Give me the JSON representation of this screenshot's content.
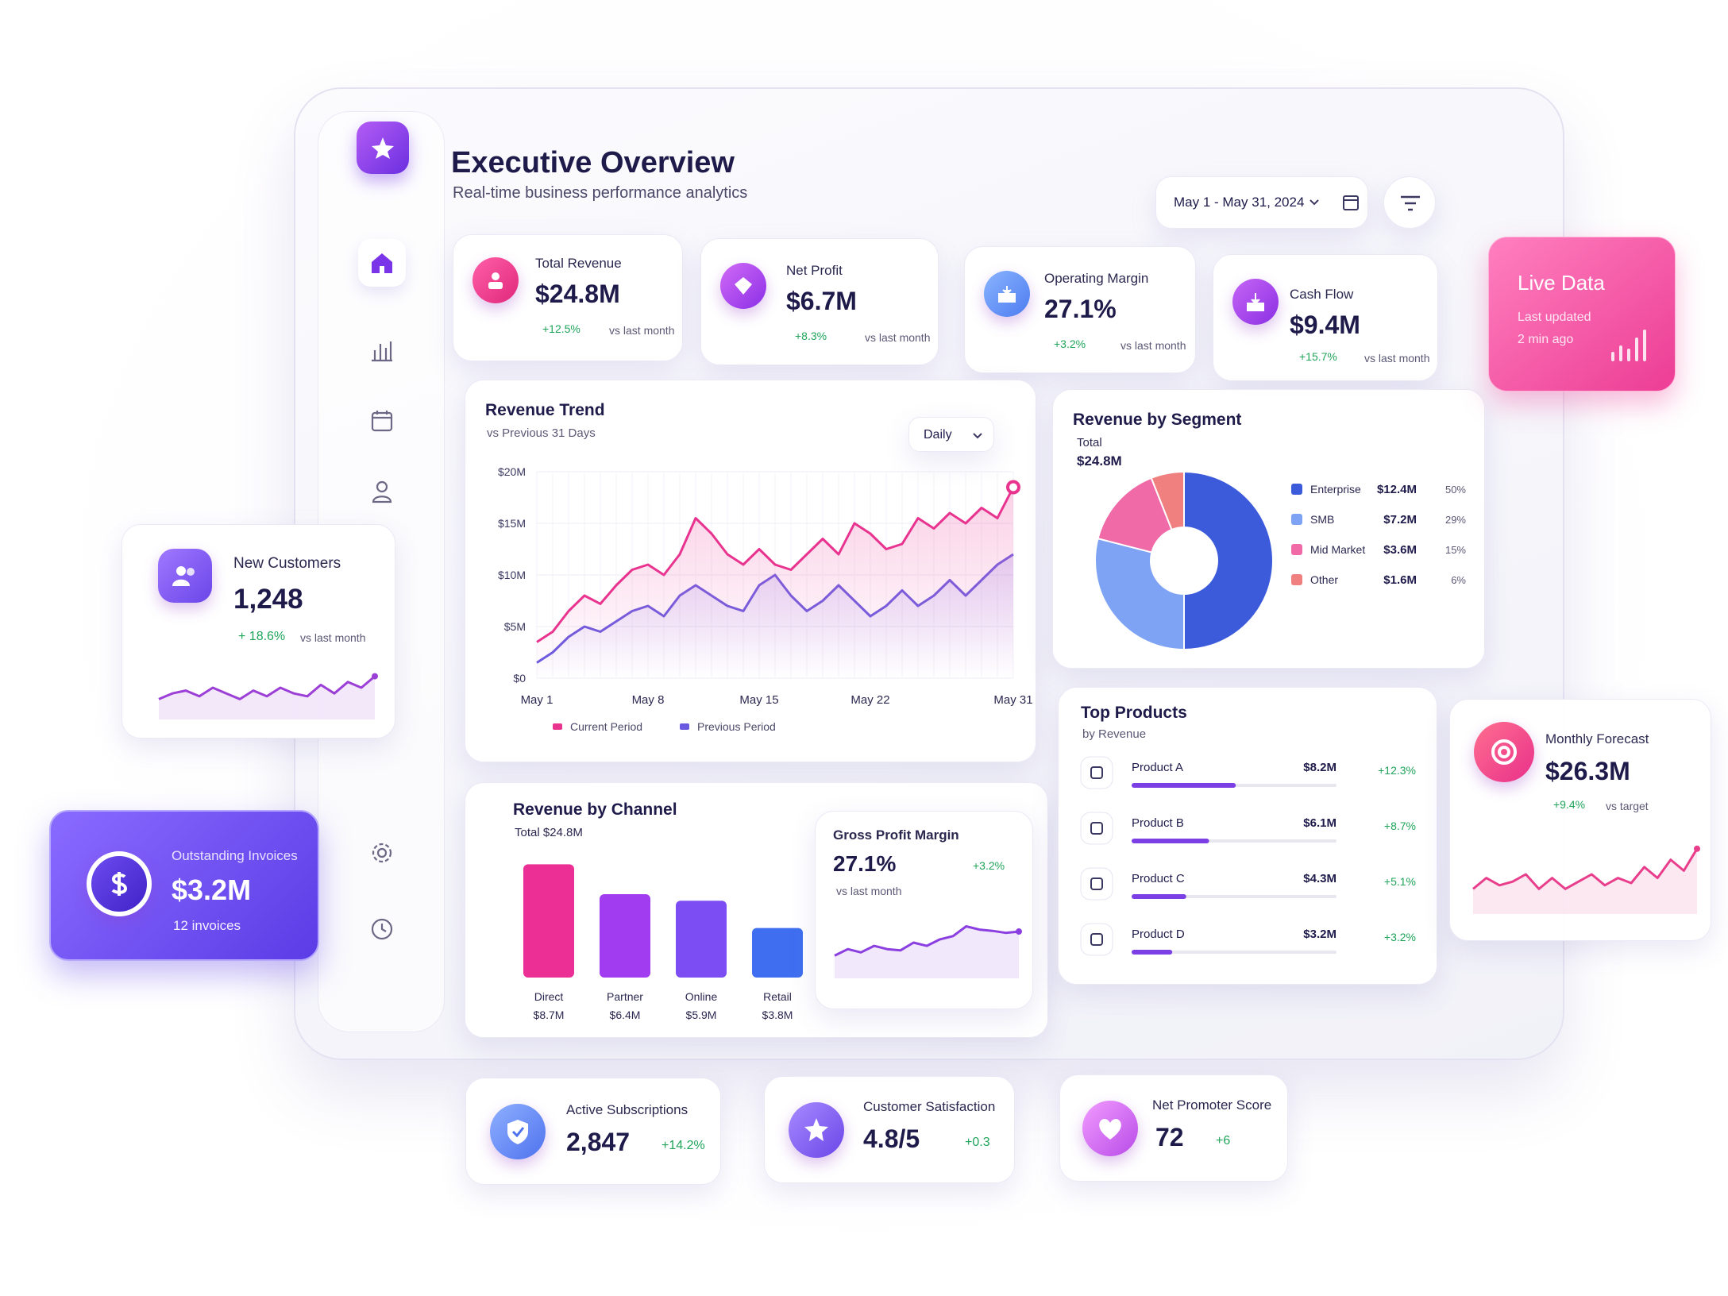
{
  "header": {
    "title": "Executive Overview",
    "subtitle": "Real-time business performance analytics",
    "date_range": "May 1 - May 31, 2024"
  },
  "kpis": [
    {
      "label": "Total Revenue",
      "value": "$24.8M",
      "change": "+12.5%",
      "note": "vs last month"
    },
    {
      "label": "Net Profit",
      "value": "$6.7M",
      "change": "+8.3%",
      "note": "vs last month"
    },
    {
      "label": "Operating Margin",
      "value": "27.1%",
      "change": "+3.2%",
      "note": "vs last month"
    },
    {
      "label": "Cash Flow",
      "value": "$9.4M",
      "change": "+15.7%",
      "note": "vs last month"
    }
  ],
  "revenue_trend": {
    "type": "line",
    "title": "Revenue Trend",
    "subtitle": "vs Previous 31 Days",
    "period": "Daily",
    "categories": [
      "May 1",
      null,
      null,
      null,
      null,
      null,
      null,
      "May 8",
      null,
      null,
      null,
      null,
      null,
      null,
      "May 15",
      null,
      null,
      null,
      null,
      null,
      null,
      "May 22",
      null,
      null,
      null,
      null,
      null,
      null,
      null,
      null,
      "May 31"
    ],
    "series": [
      {
        "name": "Current Period",
        "color": "#e8338f",
        "values": [
          3.5,
          4.5,
          6.5,
          8,
          7.2,
          9,
          10.5,
          11,
          10,
          12,
          15.5,
          14,
          12,
          11,
          12.5,
          11,
          10.5,
          12,
          13.5,
          12,
          15,
          14,
          12.5,
          13,
          15.5,
          14.5,
          16,
          15,
          16.5,
          15.5,
          18.5
        ]
      },
      {
        "name": "Previous Period",
        "color": "#6a5ae0",
        "values": [
          1.5,
          2.5,
          4,
          5,
          4.5,
          5.5,
          6.5,
          7,
          6,
          8,
          9,
          8,
          7,
          6.5,
          9,
          10,
          8,
          6.5,
          7.5,
          9,
          7.5,
          6,
          7,
          8.5,
          7,
          8,
          9.5,
          8,
          9.5,
          11,
          12
        ]
      }
    ],
    "ylim": [
      0,
      20
    ],
    "yticks": [
      {
        "value": 0,
        "label": "$0"
      },
      {
        "value": 5,
        "label": "$5M"
      },
      {
        "value": 10,
        "label": "$10M"
      },
      {
        "value": 15,
        "label": "$15M"
      },
      {
        "value": 20,
        "label": "$20M"
      }
    ],
    "grid": true
  },
  "revenue_by_segment": {
    "type": "donut",
    "title": "Revenue by Segment",
    "total_label": "Total",
    "total": "$24.8M",
    "categories": [
      "Enterprise",
      "SMB",
      "Mid Market",
      "Other"
    ],
    "values": [
      50,
      29,
      15,
      6
    ],
    "value_labels": [
      "50%",
      "29%",
      "15%",
      "6%"
    ],
    "amounts": [
      "$12.4M",
      "$7.2M",
      "$3.6M",
      "$1.6M"
    ],
    "colors": [
      "#3b5bdb",
      "#7ea3f5",
      "#f06aa8",
      "#f08080"
    ]
  },
  "revenue_by_channel": {
    "type": "bar",
    "title": "Revenue by Channel",
    "subtitle": "Total $24.8M",
    "categories": [
      "Direct",
      "Partner",
      "Online",
      "Retail"
    ],
    "values": [
      8.7,
      6.4,
      5.9,
      3.8
    ],
    "value_labels": [
      "$8.7M",
      "$6.4M",
      "$5.9M",
      "$3.8M"
    ],
    "colors": [
      "#ec2f94",
      "#a23cf0",
      "#7b4df2",
      "#3f6ff0"
    ]
  },
  "gross_profit_margin": {
    "type": "sparkline",
    "label": "Gross Profit Margin",
    "value": "27.1%",
    "change": "+3.2%",
    "note": "vs last month",
    "color": "#8b3fe0",
    "values": [
      3,
      4,
      3.5,
      4.5,
      4,
      3.8,
      5,
      4.5,
      5.5,
      6,
      7.5,
      7,
      6.8,
      6.5,
      6.7
    ]
  },
  "top_products": {
    "type": "progress",
    "title": "Top Products",
    "subtitle": "by Revenue",
    "categories": [
      "Product A",
      "Product B",
      "Product C",
      "Product D"
    ],
    "values": [
      8.2,
      6.1,
      4.3,
      3.2
    ],
    "value_labels": [
      "$8.2M",
      "$6.1M",
      "$4.3M",
      "$3.2M"
    ],
    "changes": [
      "+12.3%",
      "+8.7%",
      "+5.1%",
      "+3.2%"
    ],
    "color": "#7b3fe4"
  },
  "live_data": {
    "title": "Live Data",
    "line1": "Last updated",
    "line2": "2 min ago"
  },
  "new_customers": {
    "type": "sparkline",
    "label": "New Customers",
    "value": "1,248",
    "change": "+ 18.6%",
    "note": "vs last month",
    "color": "#9b3fd6",
    "values": [
      3,
      4,
      4.5,
      3.5,
      5,
      4,
      3,
      4.5,
      3.5,
      5,
      4,
      3.5,
      5.5,
      4,
      6,
      5,
      7
    ]
  },
  "outstanding_invoices": {
    "label": "Outstanding Invoices",
    "value": "$3.2M",
    "note": "12 invoices"
  },
  "monthly_forecast": {
    "type": "sparkline",
    "label": "Monthly Forecast",
    "value": "$26.3M",
    "change": "+9.4%",
    "note": "vs target",
    "color": "#e83e8c",
    "values": [
      3,
      4.5,
      3.5,
      4,
      5,
      3,
      4.5,
      3,
      4,
      5,
      3.5,
      4.5,
      3.8,
      6,
      4.5,
      7,
      5.5,
      8.5
    ]
  },
  "stats": [
    {
      "label": "Active Subscriptions",
      "value": "2,847",
      "change": "+14.2%"
    },
    {
      "label": "Customer Satisfaction",
      "value": "4.8/5",
      "change": "+0.3"
    },
    {
      "label": "Net Promoter Score",
      "value": "72",
      "change": "+6"
    }
  ]
}
